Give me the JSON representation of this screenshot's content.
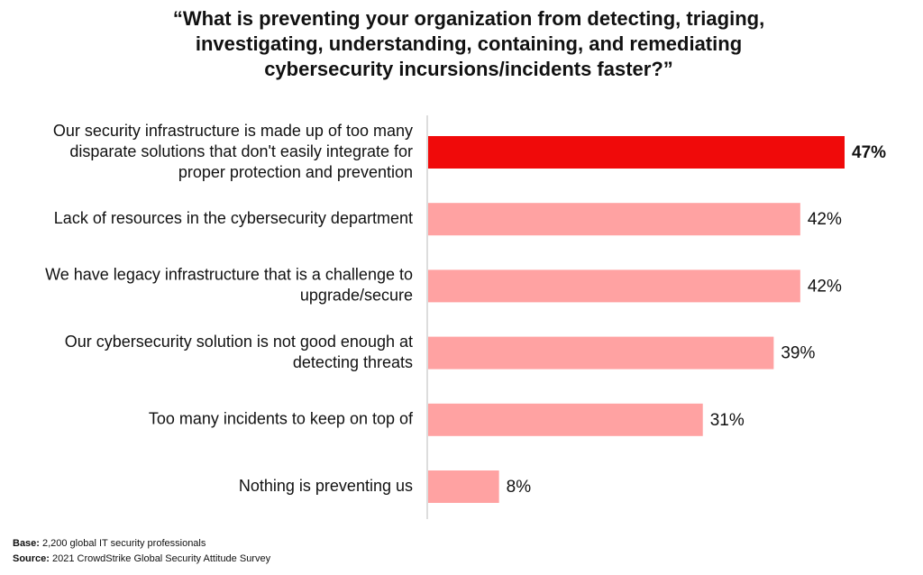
{
  "chart_data": {
    "type": "barh",
    "title": "“What is preventing your organization from detecting, triaging,\ninvestigating, understanding, containing, and remediating\ncybersecurity incursions/incidents faster?”",
    "categories": [
      "Our security infrastructure is made up of too many\ndisparate solutions that don't easily integrate for\nproper protection and prevention",
      "Lack of resources in the cybersecurity department",
      "We have legacy infrastructure that is a challenge to\nupgrade/secure",
      "Our cybersecurity solution is not good enough at\ndetecting threats",
      "Too many incidents to keep on top of",
      "Nothing is preventing us"
    ],
    "values": [
      47,
      42,
      42,
      39,
      31,
      8
    ],
    "value_labels": [
      "47%",
      "42%",
      "42%",
      "39%",
      "31%",
      "8%"
    ],
    "colors": [
      "#f00a0a",
      "#ffa2a2",
      "#ffa2a2",
      "#ffa2a2",
      "#ffa2a2",
      "#ffa2a2"
    ],
    "footnotes": [
      {
        "label": "Base:",
        "text": "2,200 global IT security professionals"
      },
      {
        "label": "Source:",
        "text": "2021 CrowdStrike Global Security Attitude Survey"
      }
    ]
  }
}
